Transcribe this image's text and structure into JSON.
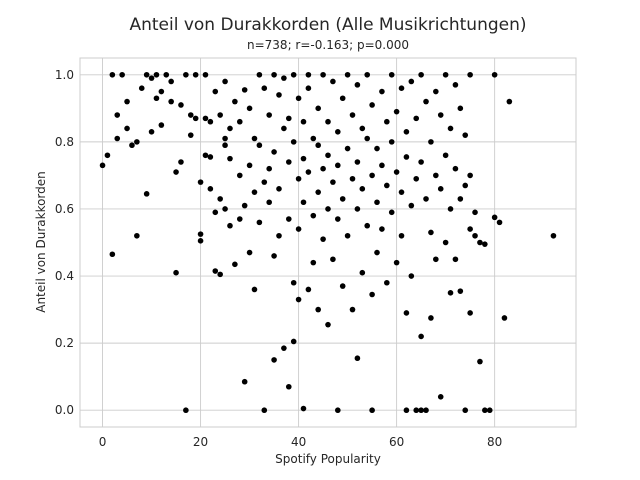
{
  "chart_data": {
    "type": "scatter",
    "title": "Anteil von Durakkorden (Alle Musikrichtungen)",
    "subtitle": "n=738; r=-0.163; p=0.000",
    "xlabel": "Spotify Popularity",
    "ylabel": "Anteil von Durakkorden",
    "xlim": [
      -4.6,
      96.6
    ],
    "ylim": [
      -0.05,
      1.05
    ],
    "x_ticks": [
      0,
      20,
      40,
      60,
      80
    ],
    "y_ticks": [
      0.0,
      0.2,
      0.4,
      0.6,
      0.8,
      1.0
    ],
    "x_tick_labels": [
      "0",
      "20",
      "40",
      "60",
      "80"
    ],
    "y_tick_labels": [
      "0.0",
      "0.2",
      "0.4",
      "0.6",
      "0.8",
      "1.0"
    ],
    "grid": true,
    "marker_color": "#000000",
    "points": [
      [
        0,
        0.73
      ],
      [
        1,
        0.76
      ],
      [
        2,
        0.465
      ],
      [
        2,
        1.0
      ],
      [
        3,
        0.88
      ],
      [
        3,
        0.81
      ],
      [
        4,
        1.0
      ],
      [
        5,
        0.92
      ],
      [
        5,
        0.84
      ],
      [
        6,
        0.79
      ],
      [
        7,
        0.52
      ],
      [
        7,
        0.8
      ],
      [
        8,
        0.96
      ],
      [
        9,
        1.0
      ],
      [
        9,
        0.645
      ],
      [
        10,
        0.83
      ],
      [
        10,
        0.99
      ],
      [
        11,
        0.93
      ],
      [
        11,
        1.0
      ],
      [
        12,
        0.95
      ],
      [
        12,
        0.85
      ],
      [
        13,
        1.0
      ],
      [
        14,
        0.98
      ],
      [
        14,
        0.92
      ],
      [
        15,
        0.71
      ],
      [
        15,
        0.41
      ],
      [
        16,
        0.74
      ],
      [
        16,
        0.91
      ],
      [
        17,
        0.0
      ],
      [
        17,
        1.0
      ],
      [
        18,
        0.88
      ],
      [
        18,
        0.82
      ],
      [
        19,
        0.87
      ],
      [
        19,
        1.0
      ],
      [
        20,
        0.505
      ],
      [
        20,
        0.525
      ],
      [
        20,
        0.68
      ],
      [
        21,
        0.76
      ],
      [
        21,
        0.87
      ],
      [
        21,
        1.0
      ],
      [
        22,
        0.755
      ],
      [
        22,
        0.66
      ],
      [
        22,
        0.86
      ],
      [
        23,
        0.415
      ],
      [
        23,
        0.59
      ],
      [
        23,
        0.95
      ],
      [
        24,
        0.88
      ],
      [
        24,
        0.405
      ],
      [
        24,
        0.63
      ],
      [
        25,
        0.81
      ],
      [
        25,
        0.79
      ],
      [
        25,
        0.98
      ],
      [
        25,
        0.6
      ],
      [
        26,
        0.84
      ],
      [
        26,
        0.75
      ],
      [
        26,
        0.55
      ],
      [
        27,
        0.92
      ],
      [
        27,
        0.435
      ],
      [
        28,
        0.86
      ],
      [
        28,
        0.7
      ],
      [
        28,
        0.57
      ],
      [
        29,
        0.955
      ],
      [
        29,
        0.61
      ],
      [
        29,
        0.085
      ],
      [
        30,
        0.9
      ],
      [
        30,
        0.73
      ],
      [
        30,
        0.47
      ],
      [
        31,
        0.81
      ],
      [
        31,
        0.65
      ],
      [
        31,
        0.36
      ],
      [
        32,
        1.0
      ],
      [
        32,
        0.79
      ],
      [
        32,
        0.56
      ],
      [
        33,
        0.96
      ],
      [
        33,
        0.68
      ],
      [
        33,
        0.0
      ],
      [
        34,
        0.88
      ],
      [
        34,
        0.72
      ],
      [
        34,
        0.62
      ],
      [
        35,
        1.0
      ],
      [
        35,
        0.77
      ],
      [
        35,
        0.46
      ],
      [
        35,
        0.15
      ],
      [
        36,
        0.94
      ],
      [
        36,
        0.66
      ],
      [
        36,
        0.52
      ],
      [
        37,
        0.99
      ],
      [
        37,
        0.84
      ],
      [
        37,
        0.185
      ],
      [
        38,
        0.87
      ],
      [
        38,
        0.74
      ],
      [
        38,
        0.57
      ],
      [
        38,
        0.07
      ],
      [
        39,
        1.0
      ],
      [
        39,
        0.8
      ],
      [
        39,
        0.38
      ],
      [
        39,
        0.205
      ],
      [
        40,
        0.93
      ],
      [
        40,
        0.69
      ],
      [
        40,
        0.54
      ],
      [
        40,
        0.33
      ],
      [
        41,
        0.86
      ],
      [
        41,
        0.75
      ],
      [
        41,
        0.62
      ],
      [
        41,
        0.005
      ],
      [
        42,
        1.0
      ],
      [
        42,
        0.96
      ],
      [
        42,
        0.71
      ],
      [
        42,
        0.36
      ],
      [
        43,
        0.81
      ],
      [
        43,
        0.58
      ],
      [
        43,
        0.44
      ],
      [
        44,
        0.9
      ],
      [
        44,
        0.79
      ],
      [
        44,
        0.65
      ],
      [
        44,
        0.3
      ],
      [
        45,
        1.0
      ],
      [
        45,
        0.72
      ],
      [
        45,
        0.51
      ],
      [
        46,
        0.86
      ],
      [
        46,
        0.76
      ],
      [
        46,
        0.6
      ],
      [
        46,
        0.255
      ],
      [
        47,
        0.98
      ],
      [
        47,
        0.68
      ],
      [
        47,
        0.45
      ],
      [
        48,
        0.83
      ],
      [
        48,
        0.73
      ],
      [
        48,
        0.57
      ],
      [
        48,
        0.0
      ],
      [
        49,
        0.93
      ],
      [
        49,
        0.63
      ],
      [
        49,
        0.37
      ],
      [
        50,
        1.0
      ],
      [
        50,
        0.78
      ],
      [
        50,
        0.52
      ],
      [
        51,
        0.88
      ],
      [
        51,
        0.69
      ],
      [
        51,
        0.3
      ],
      [
        52,
        0.97
      ],
      [
        52,
        0.74
      ],
      [
        52,
        0.6
      ],
      [
        52,
        0.155
      ],
      [
        53,
        0.84
      ],
      [
        53,
        0.66
      ],
      [
        53,
        0.41
      ],
      [
        54,
        1.0
      ],
      [
        54,
        0.81
      ],
      [
        54,
        0.55
      ],
      [
        55,
        0.91
      ],
      [
        55,
        0.7
      ],
      [
        55,
        0.345
      ],
      [
        55,
        0.0
      ],
      [
        56,
        0.78
      ],
      [
        56,
        0.62
      ],
      [
        56,
        0.47
      ],
      [
        57,
        0.95
      ],
      [
        57,
        0.73
      ],
      [
        57,
        0.54
      ],
      [
        58,
        0.86
      ],
      [
        58,
        0.67
      ],
      [
        58,
        0.38
      ],
      [
        59,
        1.0
      ],
      [
        59,
        0.8
      ],
      [
        59,
        0.59
      ],
      [
        60,
        0.89
      ],
      [
        60,
        0.71
      ],
      [
        60,
        0.44
      ],
      [
        61,
        0.96
      ],
      [
        61,
        0.65
      ],
      [
        61,
        0.52
      ],
      [
        62,
        0.83
      ],
      [
        62,
        0.755
      ],
      [
        62,
        0.29
      ],
      [
        62,
        0.0
      ],
      [
        63,
        0.98
      ],
      [
        63,
        0.61
      ],
      [
        63,
        0.4
      ],
      [
        64,
        0.87
      ],
      [
        64,
        0.69
      ],
      [
        64,
        0.0
      ],
      [
        65,
        1.0
      ],
      [
        65,
        0.74
      ],
      [
        65,
        0.22
      ],
      [
        65,
        0.0
      ],
      [
        66,
        0.92
      ],
      [
        66,
        0.63
      ],
      [
        66,
        0.0
      ],
      [
        67,
        0.8
      ],
      [
        67,
        0.53
      ],
      [
        67,
        0.275
      ],
      [
        68,
        0.95
      ],
      [
        68,
        0.7
      ],
      [
        68,
        0.45
      ],
      [
        69,
        0.88
      ],
      [
        69,
        0.66
      ],
      [
        69,
        0.04
      ],
      [
        70,
        1.0
      ],
      [
        70,
        0.76
      ],
      [
        70,
        0.5
      ],
      [
        71,
        0.84
      ],
      [
        71,
        0.6
      ],
      [
        71,
        0.35
      ],
      [
        72,
        0.97
      ],
      [
        72,
        0.72
      ],
      [
        72,
        0.45
      ],
      [
        73,
        0.9
      ],
      [
        73,
        0.63
      ],
      [
        73,
        0.355
      ],
      [
        74,
        0.82
      ],
      [
        74,
        0.67
      ],
      [
        74,
        0.0
      ],
      [
        75,
        1.0
      ],
      [
        75,
        0.7
      ],
      [
        75,
        0.54
      ],
      [
        75,
        0.29
      ],
      [
        76,
        0.59
      ],
      [
        76,
        0.52
      ],
      [
        77,
        0.5
      ],
      [
        77,
        0.145
      ],
      [
        78,
        0.495
      ],
      [
        78,
        0.0
      ],
      [
        79,
        0.0
      ],
      [
        80,
        1.0
      ],
      [
        80,
        0.575
      ],
      [
        81,
        0.56
      ],
      [
        82,
        0.275
      ],
      [
        83,
        0.92
      ],
      [
        92,
        0.52
      ]
    ]
  }
}
